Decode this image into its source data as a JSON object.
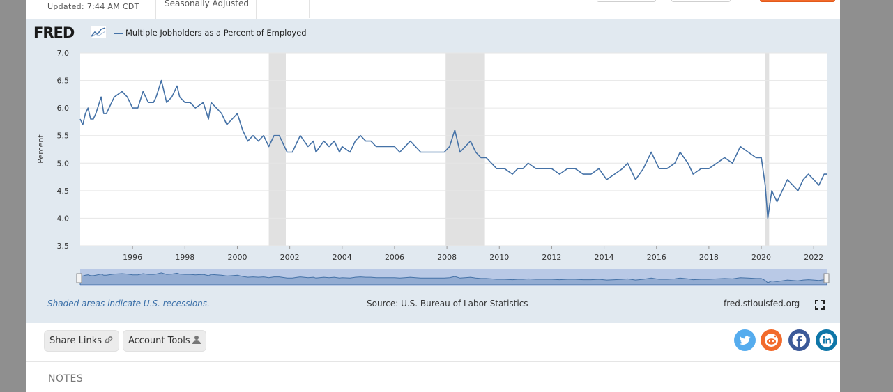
{
  "header": {
    "updated": "Updated: 7:44 AM CDT",
    "seasonal": "Seasonally Adjusted"
  },
  "brand": {
    "logo": "FRED",
    "accent": "#4572a7"
  },
  "legend": {
    "series_label": "Multiple Jobholders as a Percent of Employed"
  },
  "footer": {
    "recession_note": "Shaded areas indicate U.S. recessions.",
    "source": "Source: U.S. Bureau of Labor Statistics",
    "site": "fred.stlouisfed.org"
  },
  "tools": {
    "share_label": "Share Links",
    "account_label": "Account Tools"
  },
  "social": [
    "twitter-icon",
    "reddit-icon",
    "facebook-icon",
    "linkedin-icon"
  ],
  "colors": {
    "twitter": "#55acee",
    "reddit": "#f26a2b",
    "facebook": "#3b5998",
    "linkedin": "#0e76a8"
  },
  "notes": {
    "heading": "NOTES"
  },
  "chart_data": {
    "type": "line",
    "title": "Multiple Jobholders as a Percent of Employed",
    "xlabel": "",
    "ylabel": "Percent",
    "xlim": [
      1994.0,
      2022.5
    ],
    "ylim": [
      3.5,
      7.0
    ],
    "yticks": [
      "3.5",
      "4.0",
      "4.5",
      "5.0",
      "5.5",
      "6.0",
      "6.5",
      "7.0"
    ],
    "xticks": [
      "1996",
      "1998",
      "2000",
      "2002",
      "2004",
      "2006",
      "2008",
      "2010",
      "2012",
      "2014",
      "2016",
      "2018",
      "2020",
      "2022"
    ],
    "recessions": [
      [
        2001.2,
        2001.85
      ],
      [
        2007.95,
        2009.45
      ],
      [
        2020.15,
        2020.3
      ]
    ],
    "series": [
      {
        "name": "Multiple Jobholders as a Percent of Employed",
        "x": [
          1994.0,
          1994.1,
          1994.2,
          1994.3,
          1994.4,
          1994.5,
          1994.6,
          1994.8,
          1994.9,
          1995.0,
          1995.2,
          1995.3,
          1995.6,
          1995.8,
          1996.0,
          1996.2,
          1996.4,
          1996.6,
          1996.8,
          1996.9,
          1997.1,
          1997.3,
          1997.5,
          1997.7,
          1997.8,
          1998.0,
          1998.2,
          1998.4,
          1998.7,
          1998.9,
          1999.0,
          1999.2,
          1999.4,
          1999.6,
          1999.8,
          2000.0,
          2000.2,
          2000.4,
          2000.6,
          2000.8,
          2001.0,
          2001.2,
          2001.4,
          2001.6,
          2001.9,
          2002.1,
          2002.3,
          2002.4,
          2002.7,
          2002.9,
          2003.0,
          2003.3,
          2003.5,
          2003.7,
          2003.9,
          2004.0,
          2004.3,
          2004.5,
          2004.7,
          2004.9,
          2005.1,
          2005.3,
          2005.5,
          2005.7,
          2006.0,
          2006.2,
          2006.4,
          2006.6,
          2006.8,
          2007.0,
          2007.3,
          2007.5,
          2007.7,
          2007.9,
          2008.1,
          2008.3,
          2008.5,
          2008.7,
          2008.9,
          2009.1,
          2009.3,
          2009.5,
          2009.7,
          2009.9,
          2010.2,
          2010.5,
          2010.7,
          2010.9,
          2011.1,
          2011.4,
          2011.7,
          2012.0,
          2012.3,
          2012.6,
          2012.9,
          2013.2,
          2013.5,
          2013.8,
          2014.1,
          2014.4,
          2014.7,
          2014.9,
          2015.2,
          2015.5,
          2015.8,
          2016.1,
          2016.4,
          2016.7,
          2016.9,
          2017.2,
          2017.4,
          2017.7,
          2018.0,
          2018.3,
          2018.6,
          2018.9,
          2019.2,
          2019.5,
          2019.8,
          2020.0,
          2020.15,
          2020.25,
          2020.4,
          2020.6,
          2020.8,
          2021.0,
          2021.2,
          2021.4,
          2021.6,
          2021.8,
          2022.0,
          2022.2,
          2022.4,
          2022.5
        ],
        "values": [
          5.8,
          5.7,
          5.9,
          6.0,
          5.8,
          5.8,
          5.9,
          6.2,
          5.9,
          5.9,
          6.1,
          6.2,
          6.3,
          6.2,
          6.0,
          6.0,
          6.3,
          6.1,
          6.1,
          6.2,
          6.5,
          6.1,
          6.2,
          6.4,
          6.2,
          6.1,
          6.1,
          6.0,
          6.1,
          5.8,
          6.1,
          6.0,
          5.9,
          5.7,
          5.8,
          5.9,
          5.6,
          5.4,
          5.5,
          5.4,
          5.5,
          5.3,
          5.5,
          5.5,
          5.2,
          5.2,
          5.4,
          5.5,
          5.3,
          5.4,
          5.2,
          5.4,
          5.3,
          5.4,
          5.2,
          5.3,
          5.2,
          5.4,
          5.5,
          5.4,
          5.4,
          5.3,
          5.3,
          5.3,
          5.3,
          5.2,
          5.3,
          5.4,
          5.3,
          5.2,
          5.2,
          5.2,
          5.2,
          5.2,
          5.3,
          5.6,
          5.2,
          5.3,
          5.4,
          5.2,
          5.1,
          5.1,
          5.0,
          4.9,
          4.9,
          4.8,
          4.9,
          4.9,
          5.0,
          4.9,
          4.9,
          4.9,
          4.8,
          4.9,
          4.9,
          4.8,
          4.8,
          4.9,
          4.7,
          4.8,
          4.9,
          5.0,
          4.7,
          4.9,
          5.2,
          4.9,
          4.9,
          5.0,
          5.2,
          5.0,
          4.8,
          4.9,
          4.9,
          5.0,
          5.1,
          5.0,
          5.3,
          5.2,
          5.1,
          5.1,
          4.6,
          4.0,
          4.5,
          4.3,
          4.5,
          4.7,
          4.6,
          4.5,
          4.7,
          4.8,
          4.7,
          4.6,
          4.8,
          4.8
        ]
      }
    ]
  }
}
